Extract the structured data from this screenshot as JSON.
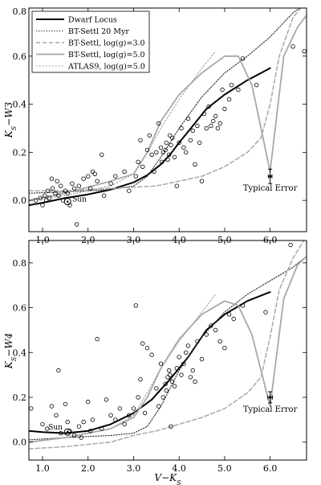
{
  "chart_data": [
    {
      "type": "line",
      "panel": "top",
      "xlabel": "",
      "ylabel": "K_S−W3",
      "ylabel_main": "K",
      "ylabel_sub": "S",
      "ylabel_rest": "−W3",
      "xlim": [
        0.7,
        6.8
      ],
      "ylim": [
        -0.13,
        0.8
      ],
      "xticks": [
        1.0,
        2.0,
        3.0,
        4.0,
        5.0,
        6.0
      ],
      "xtick_labels": [
        "1.0",
        "2.0",
        "3.0",
        "4.0",
        "5.0",
        "6.0"
      ],
      "yticks": [
        0.0,
        0.2,
        0.4,
        0.6,
        0.8
      ],
      "ytick_labels": [
        "0.0",
        "0.2",
        "0.4",
        "0.6",
        "0.8"
      ],
      "legend_position": "top-left",
      "grid": false,
      "series": [
        {
          "name": "Dwarf Locus",
          "style": "solid-thick",
          "color": "#000000",
          "x": [
            0.7,
            1.0,
            1.5,
            2.0,
            2.5,
            3.0,
            3.3,
            3.6,
            3.8,
            4.0,
            4.3,
            4.6,
            5.0,
            5.5,
            6.0
          ],
          "y": [
            -0.02,
            -0.01,
            0.01,
            0.025,
            0.045,
            0.075,
            0.105,
            0.15,
            0.19,
            0.24,
            0.31,
            0.38,
            0.44,
            0.5,
            0.55
          ]
        },
        {
          "name": "BT-Settl 20 Myr",
          "style": "dotted",
          "color": "#333333",
          "x": [
            0.7,
            1.5,
            2.5,
            3.0,
            3.3,
            3.6,
            4.0,
            4.5,
            5.0,
            5.5,
            6.0,
            6.5,
            6.8
          ],
          "y": [
            0.03,
            0.035,
            0.045,
            0.06,
            0.1,
            0.18,
            0.3,
            0.43,
            0.53,
            0.6,
            0.68,
            0.78,
            0.82
          ]
        },
        {
          "name": "BT-Settl, log(g)=3.0",
          "style": "dashed",
          "color": "#a8a8a8",
          "x": [
            0.7,
            1.5,
            2.5,
            3.0,
            3.5,
            4.0,
            4.5,
            5.0,
            5.5,
            5.8,
            6.0,
            6.2,
            6.5,
            6.8
          ],
          "y": [
            0.04,
            0.04,
            0.05,
            0.055,
            0.06,
            0.08,
            0.1,
            0.14,
            0.2,
            0.26,
            0.4,
            0.6,
            0.76,
            0.83
          ]
        },
        {
          "name": "BT-Settl, log(g)=5.0",
          "style": "solid",
          "color": "#a8a8a8",
          "x": [
            0.7,
            1.5,
            2.5,
            3.0,
            3.3,
            3.6,
            4.0,
            4.5,
            5.0,
            5.3,
            5.6,
            6.0,
            6.3,
            6.6,
            6.8
          ],
          "y": [
            0.0,
            0.03,
            0.08,
            0.11,
            0.2,
            0.33,
            0.44,
            0.53,
            0.6,
            0.6,
            0.48,
            0.12,
            0.6,
            0.72,
            0.77
          ]
        },
        {
          "name": "ATLAS9, log(g)=5.0",
          "style": "dashdot",
          "color": "#a8a8a8",
          "x": [
            0.7,
            1.5,
            2.5,
            3.0,
            3.3,
            3.6,
            4.0,
            4.5,
            4.8
          ],
          "y": [
            0.0,
            0.02,
            0.06,
            0.11,
            0.2,
            0.3,
            0.42,
            0.55,
            0.62
          ]
        }
      ],
      "points": [
        [
          0.85,
          0.0
        ],
        [
          0.95,
          0.01
        ],
        [
          1.0,
          -0.02
        ],
        [
          1.05,
          0.02
        ],
        [
          1.08,
          0.0
        ],
        [
          1.12,
          0.04
        ],
        [
          1.15,
          0.01
        ],
        [
          1.2,
          0.09
        ],
        [
          1.22,
          0.05
        ],
        [
          1.28,
          0.03
        ],
        [
          1.32,
          0.08
        ],
        [
          1.35,
          0.02
        ],
        [
          1.4,
          0.06
        ],
        [
          1.45,
          0.0
        ],
        [
          1.5,
          0.04
        ],
        [
          1.55,
          0.03
        ],
        [
          1.6,
          -0.02
        ],
        [
          1.65,
          0.07
        ],
        [
          1.7,
          0.05
        ],
        [
          1.75,
          -0.1
        ],
        [
          1.8,
          0.06
        ],
        [
          1.9,
          0.09
        ],
        [
          2.0,
          0.1
        ],
        [
          2.05,
          0.05
        ],
        [
          2.1,
          0.12
        ],
        [
          2.15,
          0.11
        ],
        [
          2.2,
          0.08
        ],
        [
          2.3,
          0.19
        ],
        [
          2.35,
          0.02
        ],
        [
          2.5,
          0.07
        ],
        [
          2.6,
          0.1
        ],
        [
          2.8,
          0.12
        ],
        [
          2.9,
          0.04
        ],
        [
          3.05,
          0.1
        ],
        [
          3.1,
          0.16
        ],
        [
          3.15,
          0.25
        ],
        [
          3.2,
          0.14
        ],
        [
          3.3,
          0.21
        ],
        [
          3.35,
          0.27
        ],
        [
          3.4,
          0.19
        ],
        [
          3.45,
          0.12
        ],
        [
          3.5,
          0.2
        ],
        [
          3.55,
          0.32
        ],
        [
          3.6,
          0.22
        ],
        [
          3.62,
          0.16
        ],
        [
          3.65,
          0.2
        ],
        [
          3.7,
          0.21
        ],
        [
          3.72,
          0.24
        ],
        [
          3.75,
          0.17
        ],
        [
          3.78,
          0.19
        ],
        [
          3.8,
          0.27
        ],
        [
          3.82,
          0.23
        ],
        [
          3.85,
          0.26
        ],
        [
          3.9,
          0.18
        ],
        [
          3.95,
          0.06
        ],
        [
          4.0,
          0.24
        ],
        [
          4.05,
          0.3
        ],
        [
          4.1,
          0.22
        ],
        [
          4.15,
          0.2
        ],
        [
          4.2,
          0.34
        ],
        [
          4.25,
          0.25
        ],
        [
          4.3,
          0.29
        ],
        [
          4.35,
          0.15
        ],
        [
          4.4,
          0.31
        ],
        [
          4.45,
          0.24
        ],
        [
          4.5,
          0.08
        ],
        [
          4.55,
          0.36
        ],
        [
          4.6,
          0.3
        ],
        [
          4.65,
          0.39
        ],
        [
          4.7,
          0.31
        ],
        [
          4.75,
          0.33
        ],
        [
          4.8,
          0.35
        ],
        [
          4.85,
          0.3
        ],
        [
          4.9,
          0.32
        ],
        [
          4.95,
          0.46
        ],
        [
          5.0,
          0.38
        ],
        [
          5.1,
          0.42
        ],
        [
          5.15,
          0.48
        ],
        [
          5.3,
          0.46
        ],
        [
          5.4,
          0.59
        ],
        [
          5.7,
          0.48
        ],
        [
          6.5,
          0.64
        ],
        [
          6.75,
          0.62
        ]
      ],
      "sun": {
        "label": "Sun",
        "x": 1.55,
        "y": -0.005
      },
      "error_bar": {
        "label": "Typical Error",
        "x": 6.0,
        "y": 0.1,
        "xerr": 0.04,
        "yerr": 0.03
      }
    },
    {
      "type": "line",
      "panel": "bottom",
      "xlabel": "V−K_S",
      "xlabel_main": "V−K",
      "xlabel_sub": "S",
      "ylabel": "K_S−W4",
      "ylabel_main": "K",
      "ylabel_sub": "S",
      "ylabel_rest": "−W4",
      "xlim": [
        0.7,
        6.8
      ],
      "ylim": [
        -0.08,
        0.9
      ],
      "xticks": [
        1.0,
        2.0,
        3.0,
        4.0,
        5.0,
        6.0
      ],
      "xtick_labels": [
        "1.0",
        "2.0",
        "3.0",
        "4.0",
        "5.0",
        "6.0"
      ],
      "yticks": [
        0.0,
        0.2,
        0.4,
        0.6,
        0.8
      ],
      "ytick_labels": [
        "0.0",
        "0.2",
        "0.4",
        "0.6",
        "0.8"
      ],
      "grid": false,
      "series": [
        {
          "name": "Dwarf Locus",
          "style": "solid-thick",
          "color": "#000000",
          "x": [
            0.7,
            1.0,
            1.5,
            2.0,
            2.5,
            3.0,
            3.4,
            3.8,
            4.2,
            4.6,
            5.0,
            5.5,
            6.0
          ],
          "y": [
            0.05,
            0.045,
            0.04,
            0.05,
            0.08,
            0.13,
            0.19,
            0.28,
            0.38,
            0.5,
            0.57,
            0.63,
            0.67
          ]
        },
        {
          "name": "BT-Settl 20 Myr",
          "style": "dotted",
          "color": "#333333",
          "x": [
            0.7,
            1.5,
            2.5,
            3.0,
            3.3,
            3.6,
            4.0,
            4.5,
            5.0,
            5.5,
            6.0,
            6.5,
            6.8
          ],
          "y": [
            0.01,
            0.02,
            0.03,
            0.04,
            0.07,
            0.16,
            0.32,
            0.47,
            0.58,
            0.66,
            0.72,
            0.78,
            0.83
          ]
        },
        {
          "name": "BT-Settl, log(g)=3.0",
          "style": "dashed",
          "color": "#a8a8a8",
          "x": [
            0.7,
            1.5,
            2.5,
            3.0,
            3.5,
            4.0,
            4.5,
            5.0,
            5.5,
            5.8,
            6.0,
            6.2,
            6.5,
            6.8
          ],
          "y": [
            -0.03,
            -0.02,
            0.0,
            0.03,
            0.05,
            0.08,
            0.11,
            0.15,
            0.22,
            0.29,
            0.47,
            0.68,
            0.82,
            0.92
          ]
        },
        {
          "name": "BT-Settl, log(g)=5.0",
          "style": "solid",
          "color": "#a8a8a8",
          "x": [
            0.7,
            1.5,
            2.5,
            3.0,
            3.3,
            3.6,
            4.0,
            4.5,
            5.0,
            5.3,
            5.6,
            6.0,
            6.3,
            6.6,
            6.8
          ],
          "y": [
            0.0,
            0.02,
            0.06,
            0.11,
            0.2,
            0.33,
            0.46,
            0.57,
            0.63,
            0.61,
            0.48,
            0.16,
            0.64,
            0.79,
            0.83
          ]
        },
        {
          "name": "ATLAS9, log(g)=5.0",
          "style": "dashdot",
          "color": "#a8a8a8",
          "x": [
            0.7,
            1.5,
            2.5,
            3.0,
            3.3,
            3.6,
            4.0,
            4.5,
            4.8
          ],
          "y": [
            0.0,
            0.02,
            0.06,
            0.12,
            0.22,
            0.33,
            0.45,
            0.58,
            0.66
          ]
        }
      ],
      "points": [
        [
          0.75,
          0.15
        ],
        [
          1.0,
          0.08
        ],
        [
          1.1,
          0.06
        ],
        [
          1.2,
          0.16
        ],
        [
          1.3,
          0.12
        ],
        [
          1.35,
          0.32
        ],
        [
          1.4,
          0.04
        ],
        [
          1.5,
          0.17
        ],
        [
          1.55,
          0.09
        ],
        [
          1.6,
          0.05
        ],
        [
          1.7,
          0.03
        ],
        [
          1.8,
          0.07
        ],
        [
          1.85,
          0.02
        ],
        [
          1.9,
          0.09
        ],
        [
          2.0,
          0.18
        ],
        [
          2.05,
          0.05
        ],
        [
          2.1,
          0.1
        ],
        [
          2.2,
          0.46
        ],
        [
          2.3,
          0.06
        ],
        [
          2.4,
          0.19
        ],
        [
          2.5,
          0.12
        ],
        [
          2.6,
          0.1
        ],
        [
          2.7,
          0.15
        ],
        [
          2.8,
          0.08
        ],
        [
          2.9,
          0.12
        ],
        [
          3.0,
          0.15
        ],
        [
          3.05,
          0.61
        ],
        [
          3.1,
          0.2
        ],
        [
          3.15,
          0.28
        ],
        [
          3.2,
          0.44
        ],
        [
          3.25,
          0.13
        ],
        [
          3.3,
          0.42
        ],
        [
          3.4,
          0.39
        ],
        [
          3.5,
          0.24
        ],
        [
          3.55,
          0.16
        ],
        [
          3.6,
          0.35
        ],
        [
          3.65,
          0.2
        ],
        [
          3.7,
          0.26
        ],
        [
          3.72,
          0.23
        ],
        [
          3.75,
          0.29
        ],
        [
          3.78,
          0.32
        ],
        [
          3.8,
          0.3
        ],
        [
          3.82,
          0.07
        ],
        [
          3.85,
          0.27
        ],
        [
          3.9,
          0.25
        ],
        [
          3.95,
          0.33
        ],
        [
          4.0,
          0.38
        ],
        [
          4.05,
          0.3
        ],
        [
          4.1,
          0.35
        ],
        [
          4.15,
          0.4
        ],
        [
          4.2,
          0.43
        ],
        [
          4.25,
          0.29
        ],
        [
          4.3,
          0.32
        ],
        [
          4.35,
          0.27
        ],
        [
          4.4,
          0.45
        ],
        [
          4.5,
          0.37
        ],
        [
          4.6,
          0.48
        ],
        [
          4.7,
          0.52
        ],
        [
          4.8,
          0.5
        ],
        [
          4.9,
          0.45
        ],
        [
          5.0,
          0.42
        ],
        [
          5.1,
          0.57
        ],
        [
          5.2,
          0.55
        ],
        [
          5.4,
          0.61
        ],
        [
          5.9,
          0.58
        ],
        [
          6.45,
          0.88
        ]
      ],
      "sun": {
        "label": "Sun",
        "x": 1.55,
        "y": 0.045
      },
      "error_bar": {
        "label": "Typical Error",
        "x": 6.0,
        "y": 0.2,
        "xerr": 0.05,
        "yerr": 0.025
      }
    }
  ],
  "styles": {
    "line_gray": "#a8a8a8",
    "line_black": "#000000",
    "dotted_color": "#333333",
    "marker_edge": "#000000"
  }
}
